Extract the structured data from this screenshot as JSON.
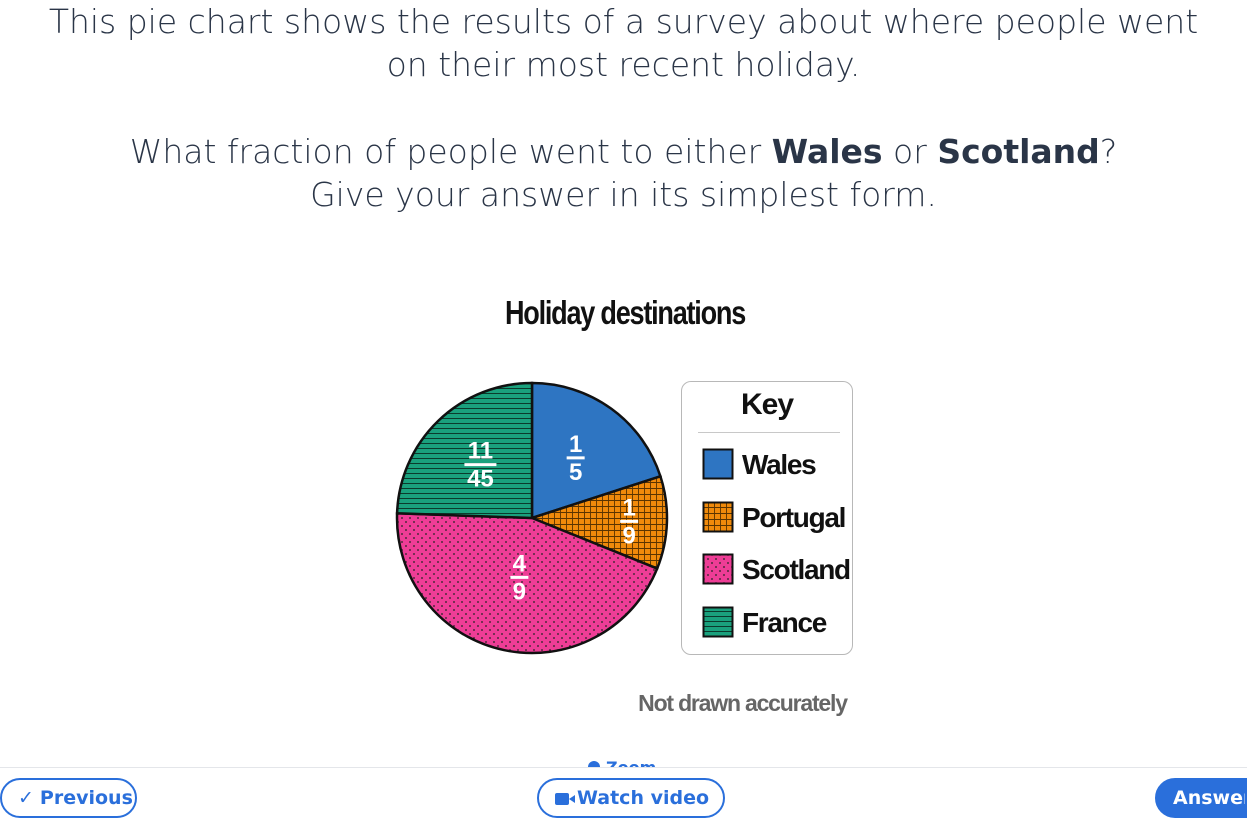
{
  "question": {
    "line1": "This pie chart shows the results of a survey about where people went",
    "line2": "on their most recent holiday.",
    "line3_pre": "What fraction of people went to either ",
    "line3_b1": "Wales",
    "line3_mid": " or ",
    "line3_b2": "Scotland",
    "line3_post": "?",
    "line4": "Give your answer in its simplest form."
  },
  "chart_data": {
    "type": "pie",
    "title": "Holiday destinations",
    "slices": [
      {
        "name": "Wales",
        "value": 0.2,
        "label_num": "1",
        "label_den": "5",
        "color": "#2e75c2",
        "pattern": "solid"
      },
      {
        "name": "Portugal",
        "value": 0.1111,
        "label_num": "1",
        "label_den": "9",
        "color": "#f08a0b",
        "pattern": "grid"
      },
      {
        "name": "Scotland",
        "value": 0.4444,
        "label_num": "4",
        "label_den": "9",
        "color": "#ee3d96",
        "pattern": "dots"
      },
      {
        "name": "France",
        "value": 0.2444,
        "label_num": "11",
        "label_den": "45",
        "color": "#1aa17d",
        "pattern": "hlines"
      }
    ],
    "legend_title": "Key",
    "legend_position": "right",
    "note": "Not drawn accurately"
  },
  "zoom_label": "Zoom",
  "buttons": {
    "previous": "Previous",
    "previous_icon": "chevron-left-icon",
    "watch_video": "Watch video",
    "watch_video_icon": "video-icon",
    "answer": "Answer"
  }
}
